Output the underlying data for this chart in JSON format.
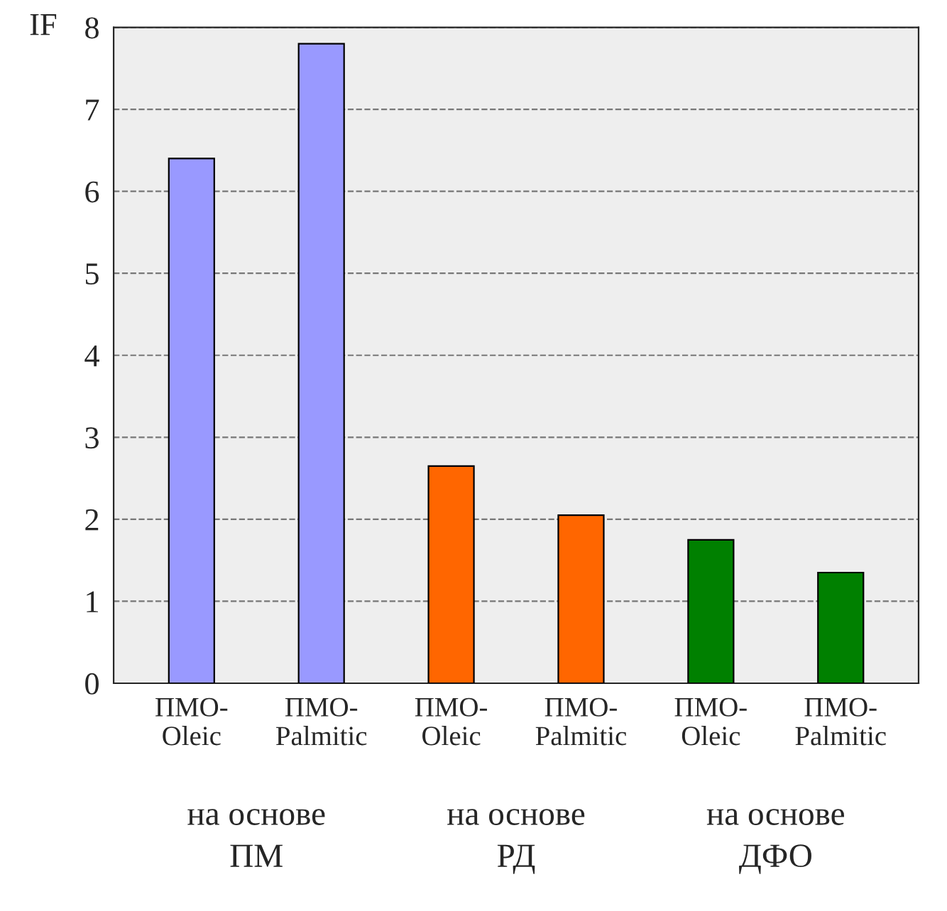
{
  "chart_data": {
    "type": "bar",
    "ylabel": "IF",
    "categories": [
      "ПМО-\nOleic",
      "ПМО-\nPalmitic",
      "ПМО-\nOleic",
      "ПМО-\nPalmitic",
      "ПМО-\nOleic",
      "ПМО-\nPalmitic"
    ],
    "values": [
      6.4,
      7.8,
      2.65,
      2.05,
      1.75,
      1.35
    ],
    "colors": [
      "#9999ff",
      "#9999ff",
      "#ff6600",
      "#ff6600",
      "#008000",
      "#008000"
    ],
    "ylim": [
      0,
      8
    ],
    "yticks": [
      0,
      1,
      2,
      3,
      4,
      5,
      6,
      7,
      8
    ],
    "grid": "y",
    "annotations": [
      "на основе\nПМ",
      "на основе\nРД",
      "на основе\nДФО"
    ]
  }
}
